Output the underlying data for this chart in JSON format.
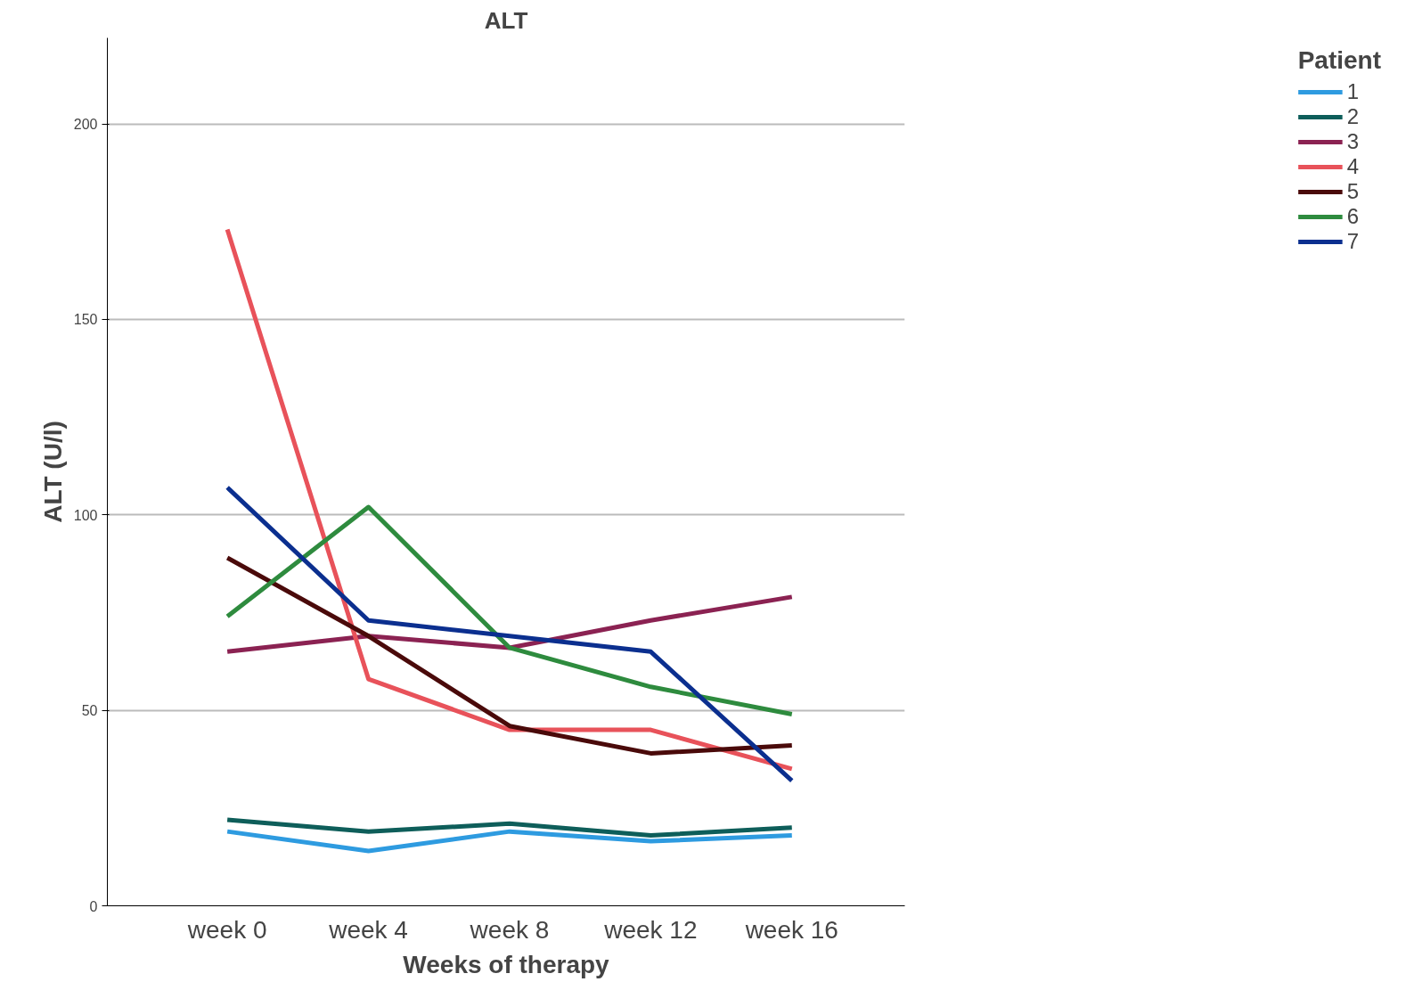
{
  "chart_data": {
    "type": "line",
    "title": "ALT",
    "xlabel": "Weeks of therapy",
    "ylabel": "ALT (U/l)",
    "legend_title": "Patient",
    "categories": [
      "week 0",
      "week 4",
      "week 8",
      "week 12",
      "week 16"
    ],
    "series": [
      {
        "name": "1",
        "color": "#2e9be0",
        "values": [
          19,
          14,
          19,
          16.5,
          18
        ]
      },
      {
        "name": "2",
        "color": "#0e5e5a",
        "values": [
          22,
          19,
          21,
          18,
          20
        ]
      },
      {
        "name": "3",
        "color": "#8b2252",
        "values": [
          65,
          69,
          66,
          73,
          79
        ]
      },
      {
        "name": "4",
        "color": "#e8525a",
        "values": [
          173,
          58,
          45,
          45,
          35
        ]
      },
      {
        "name": "5",
        "color": "#4a0a0a",
        "values": [
          89,
          69,
          46,
          39,
          41
        ]
      },
      {
        "name": "6",
        "color": "#2e8b3e",
        "values": [
          74,
          102,
          66,
          56,
          49
        ]
      },
      {
        "name": "7",
        "color": "#0b2f8f",
        "values": [
          107,
          73,
          69,
          65,
          32
        ]
      }
    ],
    "ylim": [
      0,
      222
    ],
    "yticks": [
      0,
      50,
      100,
      150,
      200
    ],
    "grid": "y",
    "legend": "top right",
    "marker": "none",
    "line_style": "solid"
  }
}
